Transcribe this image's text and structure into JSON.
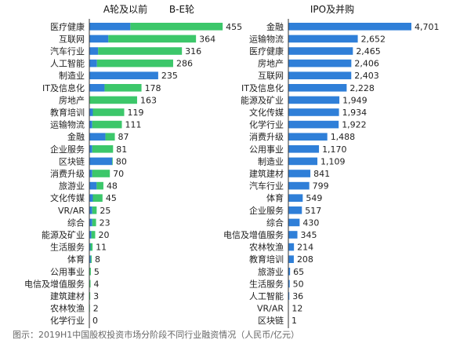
{
  "caption": "图示：2019H1中国股权投资市场分阶段不同行业融资情况（人民币/亿元）",
  "colors": {
    "seed_stage": "#2f7fd8",
    "growth_stage": "#3cc76a",
    "ipo": "#2f7fd8",
    "axis": "#333333"
  },
  "chart_data": [
    {
      "type": "bar",
      "orientation": "horizontal",
      "stacked": true,
      "legend": [
        "A轮及以前",
        "B-E轮"
      ],
      "legend_position": "top",
      "categories": [
        "医疗健康",
        "互联网",
        "汽车行业",
        "人工智能",
        "制造业",
        "IT及信息化",
        "房地产",
        "教育培训",
        "运输物流",
        "金融",
        "企业服务",
        "区块链",
        "消费升级",
        "旅游业",
        "文化传媒",
        "VR/AR",
        "综合",
        "能源及矿业",
        "生活服务",
        "体育",
        "公用事业",
        "电信及增值服务",
        "建筑建材",
        "农林牧渔",
        "化学行业"
      ],
      "totals": [
        455,
        364,
        316,
        286,
        235,
        178,
        163,
        119,
        111,
        87,
        81,
        80,
        70,
        48,
        45,
        25,
        23,
        20,
        11,
        8,
        5,
        4,
        3,
        2,
        0
      ],
      "series": [
        {
          "name": "A轮及以前",
          "values": [
            140,
            65,
            30,
            26,
            245,
            52,
            0,
            12,
            10,
            55,
            10,
            78,
            10,
            25,
            12,
            10,
            10,
            7,
            4,
            5,
            0,
            0,
            0,
            0,
            0
          ]
        },
        {
          "name": "B-E轮",
          "values": [
            315,
            299,
            286,
            260,
            -10,
            126,
            163,
            107,
            101,
            32,
            71,
            2,
            60,
            23,
            33,
            15,
            13,
            13,
            7,
            3,
            5,
            4,
            3,
            2,
            0
          ]
        }
      ],
      "xlim": [
        0,
        520
      ]
    },
    {
      "type": "bar",
      "orientation": "horizontal",
      "legend": [
        "IPO及并购"
      ],
      "legend_position": "top",
      "categories": [
        "金融",
        "运输物流",
        "医疗健康",
        "房地产",
        "互联网",
        "IT及信息化",
        "能源及矿业",
        "文化传媒",
        "化学行业",
        "消费升级",
        "公用事业",
        "制造业",
        "建筑建材",
        "汽车行业",
        "体育",
        "企业服务",
        "综合",
        "电信及增值服务",
        "农林牧渔",
        "教育培训",
        "旅游业",
        "生活服务",
        "人工智能",
        "VR/AR",
        "区块链"
      ],
      "values": [
        4701,
        2652,
        2465,
        2406,
        2403,
        2228,
        1949,
        1934,
        1922,
        1488,
        1170,
        1109,
        841,
        799,
        549,
        517,
        430,
        345,
        214,
        208,
        65,
        50,
        36,
        12,
        1
      ],
      "value_labels": [
        "4,701",
        "2,652",
        "2,465",
        "2,406",
        "2,403",
        "2,228",
        "1,949",
        "1,934",
        "1,922",
        "1,488",
        "1,170",
        "1,109",
        "841",
        "799",
        "549",
        "517",
        "430",
        "345",
        "214",
        "208",
        "65",
        "50",
        "36",
        "12",
        "1"
      ],
      "xlim": [
        0,
        4701
      ]
    }
  ]
}
